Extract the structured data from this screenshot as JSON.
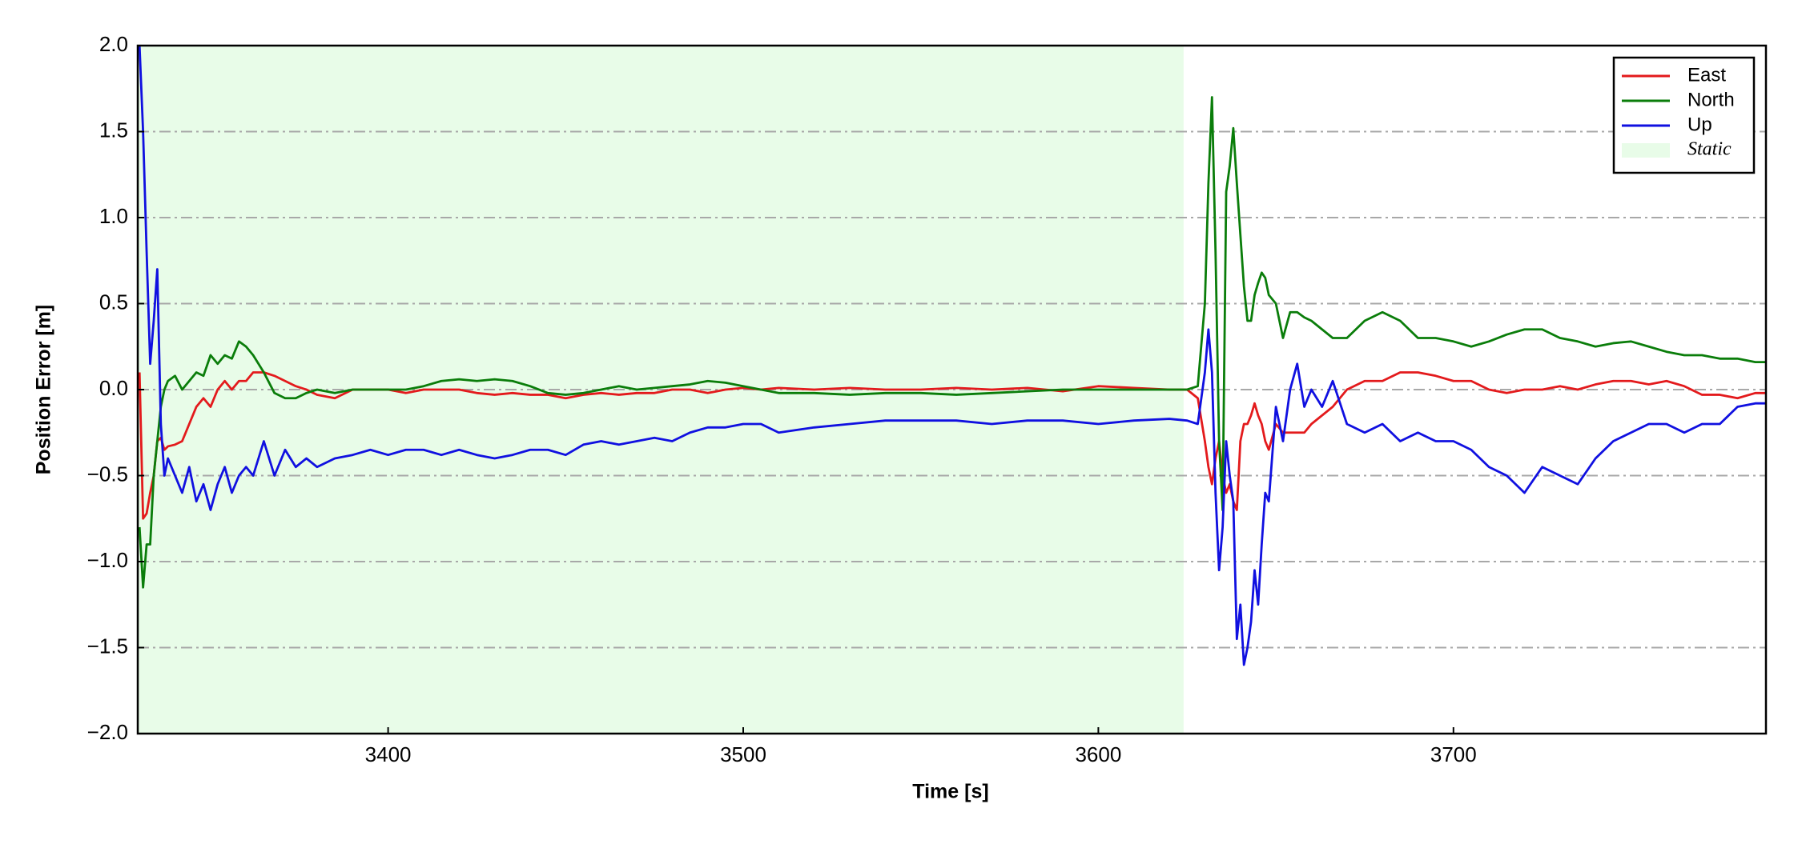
{
  "chart_data": {
    "type": "line",
    "xlabel": "Time [s]",
    "ylabel": "Position Error [m]",
    "xlim": [
      3329.5,
      3788
    ],
    "ylim": [
      -2.0,
      2.0
    ],
    "xticks": [
      3400,
      3500,
      3600,
      3700
    ],
    "yticks": [
      {
        "value": -2.0,
        "label": "−2.0"
      },
      {
        "value": -1.5,
        "label": "−1.5"
      },
      {
        "value": -1.0,
        "label": "−1.0"
      },
      {
        "value": -0.5,
        "label": "−0.5"
      },
      {
        "value": 0.0,
        "label": "0.0"
      },
      {
        "value": 0.5,
        "label": "0.5"
      },
      {
        "value": 1.0,
        "label": "1.0"
      },
      {
        "value": 1.5,
        "label": "1.5"
      },
      {
        "value": 2.0,
        "label": "2.0"
      }
    ],
    "grid": true,
    "legend": "upper right",
    "shaded_regions": [
      {
        "name": "Static",
        "color": "#e8fce8",
        "x": [
          3329.5,
          3624
        ]
      }
    ],
    "x": [
      3330,
      3331,
      3332,
      3333,
      3334,
      3335,
      3336,
      3337,
      3338,
      3340,
      3342,
      3344,
      3346,
      3348,
      3350,
      3352,
      3354,
      3356,
      3358,
      3360,
      3362,
      3365,
      3368,
      3371,
      3374,
      3377,
      3380,
      3385,
      3390,
      3395,
      3400,
      3405,
      3410,
      3415,
      3420,
      3425,
      3430,
      3435,
      3440,
      3445,
      3450,
      3455,
      3460,
      3465,
      3470,
      3475,
      3480,
      3485,
      3490,
      3495,
      3500,
      3505,
      3510,
      3520,
      3530,
      3540,
      3550,
      3560,
      3570,
      3580,
      3590,
      3600,
      3610,
      3620,
      3625,
      3628,
      3630,
      3631,
      3632,
      3633,
      3634,
      3635,
      3636,
      3637,
      3638,
      3639,
      3640,
      3641,
      3642,
      3643,
      3644,
      3645,
      3646,
      3647,
      3648,
      3650,
      3652,
      3654,
      3656,
      3658,
      3660,
      3663,
      3666,
      3670,
      3675,
      3680,
      3685,
      3690,
      3695,
      3700,
      3705,
      3710,
      3715,
      3720,
      3725,
      3730,
      3735,
      3740,
      3745,
      3750,
      3755,
      3760,
      3765,
      3770,
      3775,
      3780,
      3785,
      3788
    ],
    "series": [
      {
        "name": "East",
        "color": "#e31a1c",
        "values": [
          0.1,
          -0.75,
          -0.72,
          -0.6,
          -0.5,
          -0.3,
          -0.28,
          -0.35,
          -0.33,
          -0.32,
          -0.3,
          -0.2,
          -0.1,
          -0.05,
          -0.1,
          0,
          0.05,
          0,
          0.05,
          0.05,
          0.1,
          0.1,
          0.08,
          0.05,
          0.02,
          0,
          -0.03,
          -0.05,
          0,
          0,
          0,
          -0.02,
          0,
          0,
          0,
          -0.02,
          -0.03,
          -0.02,
          -0.03,
          -0.03,
          -0.05,
          -0.03,
          -0.02,
          -0.03,
          -0.02,
          -0.02,
          0,
          0,
          -0.02,
          0,
          0.01,
          0,
          0.01,
          0,
          0.01,
          0,
          0,
          0.01,
          0,
          0.01,
          -0.01,
          0.02,
          0.01,
          0,
          0,
          -0.05,
          -0.3,
          -0.45,
          -0.55,
          -0.4,
          -0.3,
          -0.5,
          -0.6,
          -0.55,
          -0.65,
          -0.7,
          -0.3,
          -0.2,
          -0.2,
          -0.15,
          -0.08,
          -0.15,
          -0.2,
          -0.3,
          -0.35,
          -0.2,
          -0.25,
          -0.25,
          -0.25,
          -0.25,
          -0.2,
          -0.15,
          -0.1,
          0,
          0.05,
          0.05,
          0.1,
          0.1,
          0.08,
          0.05,
          0.05,
          0,
          -0.02,
          0,
          0,
          0.02,
          0,
          0.03,
          0.05,
          0.05,
          0.03,
          0.05,
          0.02,
          -0.03,
          -0.03,
          -0.05,
          -0.02,
          -0.02
        ]
      },
      {
        "name": "North",
        "color": "#0a7d0a",
        "values": [
          -0.8,
          -1.15,
          -0.9,
          -0.9,
          -0.5,
          -0.3,
          -0.1,
          0,
          0.05,
          0.08,
          0,
          0.05,
          0.1,
          0.08,
          0.2,
          0.15,
          0.2,
          0.18,
          0.28,
          0.25,
          0.2,
          0.1,
          -0.02,
          -0.05,
          -0.05,
          -0.02,
          0,
          -0.02,
          0,
          0,
          0,
          0,
          0.02,
          0.05,
          0.06,
          0.05,
          0.06,
          0.05,
          0.02,
          -0.02,
          -0.03,
          -0.02,
          0,
          0.02,
          0,
          0.01,
          0.02,
          0.03,
          0.05,
          0.04,
          0.02,
          0,
          -0.02,
          -0.02,
          -0.03,
          -0.02,
          -0.02,
          -0.03,
          -0.02,
          -0.01,
          0,
          0,
          0,
          0,
          0,
          0.02,
          0.5,
          1.2,
          1.7,
          0.8,
          -0.3,
          -0.7,
          1.15,
          1.3,
          1.52,
          1.2,
          0.9,
          0.6,
          0.4,
          0.4,
          0.55,
          0.62,
          0.68,
          0.65,
          0.55,
          0.5,
          0.3,
          0.45,
          0.45,
          0.42,
          0.4,
          0.35,
          0.3,
          0.3,
          0.4,
          0.45,
          0.4,
          0.3,
          0.3,
          0.28,
          0.25,
          0.28,
          0.32,
          0.35,
          0.35,
          0.3,
          0.28,
          0.25,
          0.27,
          0.28,
          0.25,
          0.22,
          0.2,
          0.2,
          0.18,
          0.18,
          0.16,
          0.16
        ]
      },
      {
        "name": "Up",
        "color": "#1010e0",
        "values": [
          2.0,
          1.5,
          0.8,
          0.15,
          0.4,
          0.7,
          -0.2,
          -0.5,
          -0.4,
          -0.5,
          -0.6,
          -0.45,
          -0.65,
          -0.55,
          -0.7,
          -0.55,
          -0.45,
          -0.6,
          -0.5,
          -0.45,
          -0.5,
          -0.3,
          -0.5,
          -0.35,
          -0.45,
          -0.4,
          -0.45,
          -0.4,
          -0.38,
          -0.35,
          -0.38,
          -0.35,
          -0.35,
          -0.38,
          -0.35,
          -0.38,
          -0.4,
          -0.38,
          -0.35,
          -0.35,
          -0.38,
          -0.32,
          -0.3,
          -0.32,
          -0.3,
          -0.28,
          -0.3,
          -0.25,
          -0.22,
          -0.22,
          -0.2,
          -0.2,
          -0.25,
          -0.22,
          -0.2,
          -0.18,
          -0.18,
          -0.18,
          -0.2,
          -0.18,
          -0.18,
          -0.2,
          -0.18,
          -0.17,
          -0.18,
          -0.2,
          0.1,
          0.35,
          0.1,
          -0.6,
          -1.05,
          -0.8,
          -0.3,
          -0.5,
          -0.65,
          -1.45,
          -1.25,
          -1.6,
          -1.5,
          -1.35,
          -1.05,
          -1.25,
          -0.9,
          -0.6,
          -0.65,
          -0.1,
          -0.3,
          0,
          0.15,
          -0.1,
          0,
          -0.1,
          0.05,
          -0.2,
          -0.25,
          -0.2,
          -0.3,
          -0.25,
          -0.3,
          -0.3,
          -0.35,
          -0.45,
          -0.5,
          -0.6,
          -0.45,
          -0.5,
          -0.55,
          -0.4,
          -0.3,
          -0.25,
          -0.2,
          -0.2,
          -0.25,
          -0.2,
          -0.2,
          -0.1,
          -0.08,
          -0.08
        ]
      }
    ]
  }
}
